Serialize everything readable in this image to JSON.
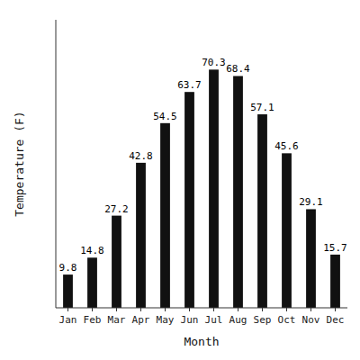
{
  "chart_data": {
    "type": "bar",
    "categories": [
      "Jan",
      "Feb",
      "Mar",
      "Apr",
      "May",
      "Jun",
      "Jul",
      "Aug",
      "Sep",
      "Oct",
      "Nov",
      "Dec"
    ],
    "values": [
      9.8,
      14.8,
      27.2,
      42.8,
      54.5,
      63.7,
      70.3,
      68.4,
      57.1,
      45.6,
      29.1,
      15.7
    ],
    "color": "#111111",
    "xlabel": "Month",
    "ylabel": "Temperature (F)",
    "ylim": [
      0,
      85
    ],
    "grid": false,
    "data_labels": true,
    "tick_labels": "x"
  }
}
